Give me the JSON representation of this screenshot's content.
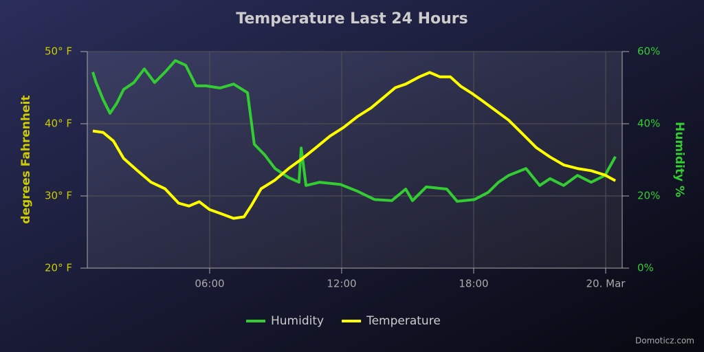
{
  "chart_data": {
    "type": "line",
    "title": "Temperature Last 24 Hours",
    "ylabel": "degrees Fahrenheit",
    "y2label": "Humidity %",
    "watermark": "Domoticz.com",
    "xlim": [
      0.44,
      24.75
    ],
    "xticks": [
      {
        "value": 6,
        "label": "06:00"
      },
      {
        "value": 12,
        "label": "12:00"
      },
      {
        "value": 18,
        "label": "18:00"
      },
      {
        "value": 24,
        "label": "20. Mar"
      }
    ],
    "ylim": [
      20,
      50
    ],
    "yticks": [
      {
        "value": 20,
        "label": "20° F"
      },
      {
        "value": 30,
        "label": "30° F"
      },
      {
        "value": 40,
        "label": "40° F"
      },
      {
        "value": 50,
        "label": "50° F"
      }
    ],
    "y2lim": [
      0,
      60
    ],
    "y2ticks": [
      {
        "value": 0,
        "label": "0%"
      },
      {
        "value": 20,
        "label": "20%"
      },
      {
        "value": 40,
        "label": "40%"
      },
      {
        "value": 60,
        "label": "60%"
      }
    ],
    "grid": true,
    "legend": "bottom",
    "series": [
      {
        "name": "Humidity",
        "color": "#33cc33",
        "axis": "y2",
        "x": [
          0.69,
          0.84,
          1.16,
          1.47,
          1.78,
          2.09,
          2.56,
          3.03,
          3.5,
          3.97,
          4.44,
          4.91,
          5.38,
          5.84,
          6.47,
          7.09,
          7.72,
          8.03,
          8.5,
          8.97,
          9.59,
          10.06,
          10.16,
          10.38,
          11,
          11.94,
          12.72,
          13.5,
          14.28,
          14.91,
          15.22,
          15.84,
          16.78,
          17.25,
          18.03,
          18.66,
          19.13,
          19.59,
          20.38,
          21,
          21.47,
          22.09,
          22.72,
          23.34,
          23.97,
          24.44
        ],
        "values": [
          54.3,
          51.4,
          46.7,
          42.9,
          45.7,
          49.5,
          51.4,
          55.2,
          51.4,
          54.3,
          57.5,
          56.2,
          50.5,
          50.5,
          49.9,
          51.0,
          48.6,
          34.3,
          31.4,
          27.6,
          25.1,
          23.8,
          33.3,
          22.9,
          23.8,
          23.2,
          21.3,
          19.0,
          18.7,
          21.9,
          18.7,
          22.5,
          21.9,
          18.5,
          19.0,
          21.0,
          23.8,
          25.7,
          27.6,
          22.9,
          24.8,
          22.9,
          25.7,
          23.8,
          25.7,
          30.9
        ]
      },
      {
        "name": "Temperature",
        "color": "#ffff00",
        "x": [
          0.69,
          1.16,
          1.63,
          2.09,
          2.72,
          3.34,
          3.97,
          4.59,
          5.06,
          5.53,
          6,
          6.47,
          7.09,
          7.56,
          7.88,
          8.34,
          8.97,
          9.59,
          10.22,
          10.84,
          11.47,
          12.09,
          12.72,
          13.34,
          13.97,
          14.44,
          14.91,
          15.53,
          16,
          16.47,
          16.94,
          17.41,
          17.88,
          18.34,
          18.97,
          19.59,
          20.22,
          20.84,
          21.47,
          22.09,
          22.72,
          23.34,
          23.97,
          24.44
        ],
        "values": [
          39.0,
          38.8,
          37.6,
          35.2,
          33.5,
          31.9,
          31.0,
          29.0,
          28.6,
          29.2,
          28.1,
          27.6,
          26.9,
          27.1,
          28.6,
          31.0,
          32.2,
          33.8,
          35.2,
          36.7,
          38.3,
          39.5,
          41.0,
          42.2,
          43.8,
          45.0,
          45.5,
          46.5,
          47.1,
          46.5,
          46.5,
          45.2,
          44.3,
          43.3,
          41.9,
          40.5,
          38.6,
          36.7,
          35.4,
          34.3,
          33.8,
          33.5,
          32.9,
          32.1
        ]
      }
    ]
  }
}
